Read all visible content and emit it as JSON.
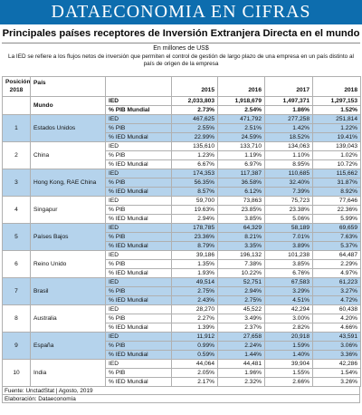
{
  "banner": "DATAECONOMIA EN CIFRAS",
  "title": "Principales países receptores de Inversión Extranjera Directa en el mundo",
  "subtitle": "En millones de US$",
  "note": "La IED se refiere a los flujos netos de inversión que permiten el control de gestión de largo plazo de una empresa en un país distinto al país de origen de la empresa",
  "header": {
    "pos": "Posición 2018",
    "pais": "País",
    "years": [
      "2015",
      "2016",
      "2017",
      "2018"
    ]
  },
  "world": {
    "name": "Mundo",
    "rows": [
      {
        "label": "IED",
        "values": [
          "2,033,803",
          "1,918,679",
          "1,497,371",
          "1,297,153"
        ]
      },
      {
        "label": "% PIB Mundial",
        "values": [
          "2.73%",
          "2.54%",
          "1.86%",
          "1.52%"
        ]
      }
    ]
  },
  "countries": [
    {
      "pos": "1",
      "name": "Estados Unidos",
      "rows": [
        {
          "label": "IED",
          "values": [
            "467,625",
            "471,792",
            "277,258",
            "251,814"
          ]
        },
        {
          "label": "% PIB",
          "values": [
            "2.55%",
            "2.51%",
            "1.42%",
            "1.22%"
          ]
        },
        {
          "label": "% IED Mundial",
          "values": [
            "22.99%",
            "24.59%",
            "18.52%",
            "19.41%"
          ]
        }
      ]
    },
    {
      "pos": "2",
      "name": "China",
      "rows": [
        {
          "label": "IED",
          "values": [
            "135,610",
            "133,710",
            "134,063",
            "139,043"
          ]
        },
        {
          "label": "% PIB",
          "values": [
            "1.23%",
            "1.19%",
            "1.10%",
            "1.02%"
          ]
        },
        {
          "label": "% IED Mundial",
          "values": [
            "6.67%",
            "6.97%",
            "8.95%",
            "10.72%"
          ]
        }
      ]
    },
    {
      "pos": "3",
      "name": "Hong Kong, RAE China",
      "rows": [
        {
          "label": "IED",
          "values": [
            "174,353",
            "117,387",
            "110,685",
            "115,662"
          ]
        },
        {
          "label": "% PIB",
          "values": [
            "56.35%",
            "36.58%",
            "32.40%",
            "31.87%"
          ]
        },
        {
          "label": "% IED Mundial",
          "values": [
            "8.57%",
            "6.12%",
            "7.39%",
            "8.92%"
          ]
        }
      ]
    },
    {
      "pos": "4",
      "name": "Singapur",
      "rows": [
        {
          "label": "IED",
          "values": [
            "59,700",
            "73,863",
            "75,723",
            "77,646"
          ]
        },
        {
          "label": "% PIB",
          "values": [
            "19.63%",
            "23.85%",
            "23.38%",
            "22.36%"
          ]
        },
        {
          "label": "% IED Mundial",
          "values": [
            "2.94%",
            "3.85%",
            "5.06%",
            "5.99%"
          ]
        }
      ]
    },
    {
      "pos": "5",
      "name": "Países Bajos",
      "rows": [
        {
          "label": "IED",
          "values": [
            "178,785",
            "64,329",
            "58,189",
            "69,659"
          ]
        },
        {
          "label": "% PIB",
          "values": [
            "23.36%",
            "8.21%",
            "7.01%",
            "7.63%"
          ]
        },
        {
          "label": "% IED Mundial",
          "values": [
            "8.79%",
            "3.35%",
            "3.89%",
            "5.37%"
          ]
        }
      ]
    },
    {
      "pos": "6",
      "name": "Reino Unido",
      "rows": [
        {
          "label": "IED",
          "values": [
            "39,186",
            "196,132",
            "101,238",
            "64,487"
          ]
        },
        {
          "label": "% PIB",
          "values": [
            "1.35%",
            "7.38%",
            "3.85%",
            "2.29%"
          ]
        },
        {
          "label": "% IED Mundial",
          "values": [
            "1.93%",
            "10.22%",
            "6.76%",
            "4.97%"
          ]
        }
      ]
    },
    {
      "pos": "7",
      "name": "Brasil",
      "rows": [
        {
          "label": "IED",
          "values": [
            "49,514",
            "52,751",
            "67,583",
            "61,223"
          ]
        },
        {
          "label": "% PIB",
          "values": [
            "2.75%",
            "2.94%",
            "3.29%",
            "3.27%"
          ]
        },
        {
          "label": "% IED Mundial",
          "values": [
            "2.43%",
            "2.75%",
            "4.51%",
            "4.72%"
          ]
        }
      ]
    },
    {
      "pos": "8",
      "name": "Australia",
      "rows": [
        {
          "label": "IED",
          "values": [
            "28,270",
            "45,522",
            "42,294",
            "60,438"
          ]
        },
        {
          "label": "% PIB",
          "values": [
            "2.27%",
            "3.49%",
            "3.00%",
            "4.20%"
          ]
        },
        {
          "label": "% IED Mundial",
          "values": [
            "1.39%",
            "2.37%",
            "2.82%",
            "4.66%"
          ]
        }
      ]
    },
    {
      "pos": "9",
      "name": "España",
      "rows": [
        {
          "label": "IED",
          "values": [
            "11,912",
            "27,658",
            "20,918",
            "43,591"
          ]
        },
        {
          "label": "% PIB",
          "values": [
            "0.99%",
            "2.24%",
            "1.59%",
            "3.06%"
          ]
        },
        {
          "label": "% IED Mundial",
          "values": [
            "0.59%",
            "1.44%",
            "1.40%",
            "3.36%"
          ]
        }
      ]
    },
    {
      "pos": "10",
      "name": "India",
      "rows": [
        {
          "label": "IED",
          "values": [
            "44,064",
            "44,481",
            "39,904",
            "42,286"
          ]
        },
        {
          "label": "% PIB",
          "values": [
            "2.05%",
            "1.96%",
            "1.55%",
            "1.54%"
          ]
        },
        {
          "label": "% IED Mundial",
          "values": [
            "2.17%",
            "2.32%",
            "2.66%",
            "3.26%"
          ]
        }
      ]
    }
  ],
  "footer": {
    "source": "Fuente: UnctadStat | Agosto, 2019",
    "credit": "Elaboración: Dataeconomía"
  },
  "colors": {
    "banner": "#0d6dae",
    "band": "#b5d3ec"
  }
}
